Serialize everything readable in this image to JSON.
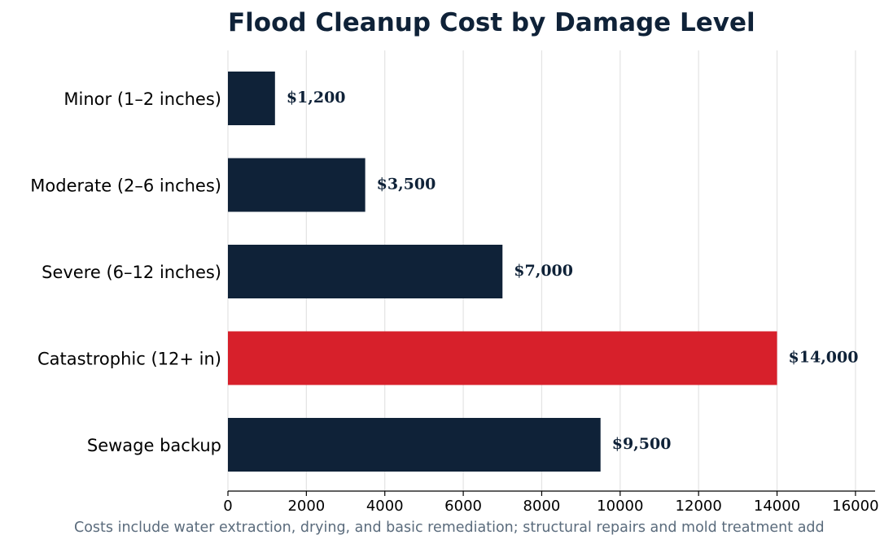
{
  "chart_data": {
    "type": "bar",
    "orientation": "horizontal",
    "title": "Flood Cleanup Cost by Damage Level",
    "xlabel": "",
    "ylabel": "",
    "categories": [
      "Minor (1–2 inches)",
      "Moderate (2–6 inches)",
      "Severe (6–12 inches)",
      "Catastrophic (12+ in)",
      "Sewage backup"
    ],
    "values": [
      1200,
      3500,
      7000,
      14000,
      9500
    ],
    "value_labels": [
      "$1,200",
      "$3,500",
      "$7,000",
      "$14,000",
      "$9,500"
    ],
    "xlim": [
      0,
      16500
    ],
    "xticks": [
      0,
      2000,
      4000,
      6000,
      8000,
      10000,
      12000,
      14000,
      16000
    ],
    "grid": "vertical",
    "legend": "none",
    "caption": "Costs include water extraction, drying, and basic remediation; structural repairs and mold treatment add",
    "colors": {
      "bar": "#0f2238",
      "highlight_bar": "#d7202b",
      "highlight_index": 3,
      "title": "#0f2238",
      "value_label": "#0f2238",
      "caption": "#5a6b7c",
      "grid": "#e3e3e3",
      "axis": "#000000"
    }
  }
}
